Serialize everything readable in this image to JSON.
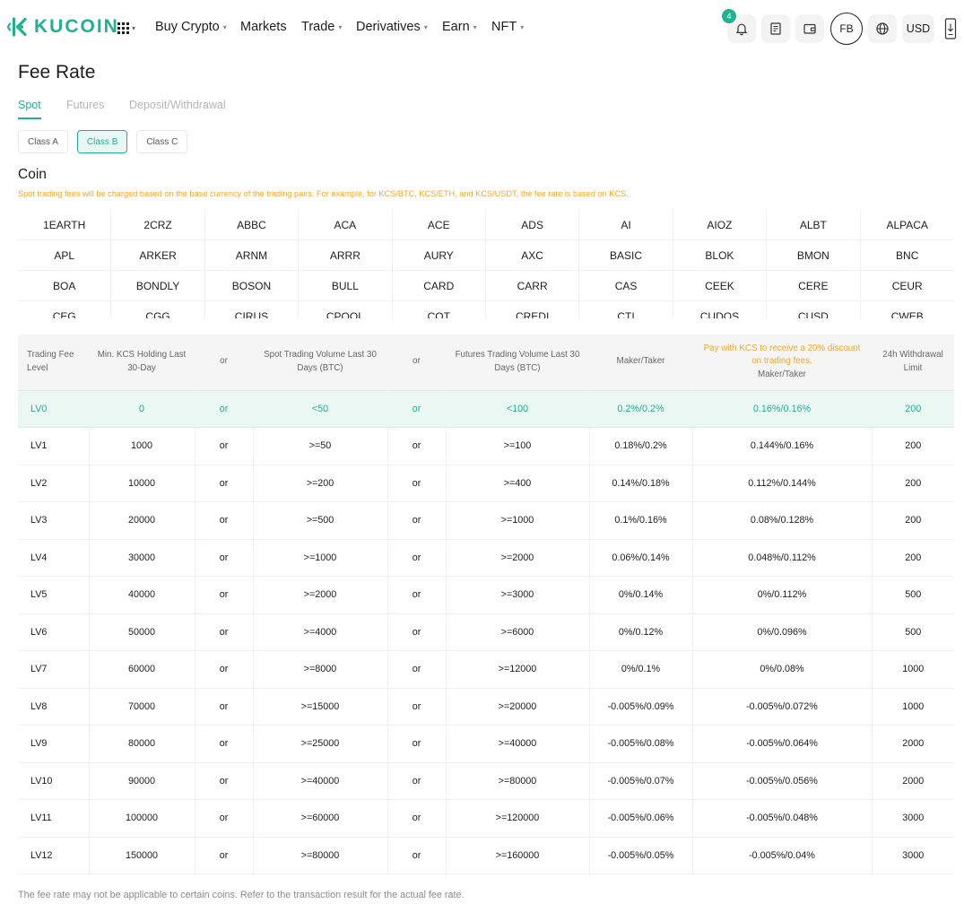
{
  "header": {
    "brand": "KUCOIN",
    "nav": [
      {
        "label": "Buy Crypto",
        "dropdown": true
      },
      {
        "label": "Markets",
        "dropdown": false
      },
      {
        "label": "Trade",
        "dropdown": true
      },
      {
        "label": "Derivatives",
        "dropdown": true
      },
      {
        "label": "Earn",
        "dropdown": true
      },
      {
        "label": "NFT",
        "dropdown": true
      }
    ],
    "notification_count": "4",
    "avatar_initials": "FB",
    "currency": "USD",
    "accent_color": "#23af91"
  },
  "page": {
    "title": "Fee Rate",
    "tabs": [
      "Spot",
      "Futures",
      "Deposit/Withdrawal"
    ],
    "active_tab": "Spot",
    "classes": [
      "Class A",
      "Class B",
      "Class C"
    ],
    "active_class": "Class B",
    "coin_title": "Coin",
    "coin_note": "Spot trading fees will be charged based on the base currency of the trading pairs. For example, for KCS/BTC, KCS/ETH, and KCS/USDT, the fee rate is based on KCS.",
    "coins": [
      [
        "1EARTH",
        "2CRZ",
        "ABBC",
        "ACA",
        "ACE",
        "ADS",
        "AI",
        "AIOZ",
        "ALBT",
        "ALPACA"
      ],
      [
        "APL",
        "ARKER",
        "ARNM",
        "ARRR",
        "AURY",
        "AXC",
        "BASIC",
        "BLOK",
        "BMON",
        "BNC"
      ],
      [
        "BOA",
        "BONDLY",
        "BOSON",
        "BULL",
        "CARD",
        "CARR",
        "CAS",
        "CEEK",
        "CERE",
        "CEUR"
      ],
      [
        "CEG",
        "CGG",
        "CIRUS",
        "CPOOL",
        "COT",
        "CREDI",
        "CTI",
        "CUDOS",
        "CUSD",
        "CWEB"
      ]
    ],
    "footer_note": "The fee rate may not be applicable to certain coins. Refer to the transaction result for the actual fee rate."
  },
  "fee_table": {
    "headers": {
      "level": "Trading Fee Level",
      "holding": "Min. KCS Holding Last 30-Day",
      "or1": "or",
      "spot_volume": "Spot Trading Volume Last 30 Days (BTC)",
      "or2": "or",
      "futures_volume": "Futures Trading Volume Last 30 Days (BTC)",
      "maker_taker": "Maker/Taker",
      "discount_note": "Pay with KCS to receive a 20% discount on trading fees.",
      "discount_maker_taker": "Maker/Taker",
      "withdrawal_limit": "24h Withdrawal Limit"
    },
    "rows": [
      {
        "level": "LV0",
        "holding": "0",
        "or1": "or",
        "spot": "<50",
        "or2": "or",
        "futures": "<100",
        "maker_taker": "0.2%/0.2%",
        "discount": "0.16%/0.16%",
        "limit": "200"
      },
      {
        "level": "LV1",
        "holding": "1000",
        "or1": "or",
        "spot": ">=50",
        "or2": "or",
        "futures": ">=100",
        "maker_taker": "0.18%/0.2%",
        "discount": "0.144%/0.16%",
        "limit": "200"
      },
      {
        "level": "LV2",
        "holding": "10000",
        "or1": "or",
        "spot": ">=200",
        "or2": "or",
        "futures": ">=400",
        "maker_taker": "0.14%/0.18%",
        "discount": "0.112%/0.144%",
        "limit": "200"
      },
      {
        "level": "LV3",
        "holding": "20000",
        "or1": "or",
        "spot": ">=500",
        "or2": "or",
        "futures": ">=1000",
        "maker_taker": "0.1%/0.16%",
        "discount": "0.08%/0.128%",
        "limit": "200"
      },
      {
        "level": "LV4",
        "holding": "30000",
        "or1": "or",
        "spot": ">=1000",
        "or2": "or",
        "futures": ">=2000",
        "maker_taker": "0.06%/0.14%",
        "discount": "0.048%/0.112%",
        "limit": "200"
      },
      {
        "level": "LV5",
        "holding": "40000",
        "or1": "or",
        "spot": ">=2000",
        "or2": "or",
        "futures": ">=3000",
        "maker_taker": "0%/0.14%",
        "discount": "0%/0.112%",
        "limit": "500"
      },
      {
        "level": "LV6",
        "holding": "50000",
        "or1": "or",
        "spot": ">=4000",
        "or2": "or",
        "futures": ">=6000",
        "maker_taker": "0%/0.12%",
        "discount": "0%/0.096%",
        "limit": "500"
      },
      {
        "level": "LV7",
        "holding": "60000",
        "or1": "or",
        "spot": ">=8000",
        "or2": "or",
        "futures": ">=12000",
        "maker_taker": "0%/0.1%",
        "discount": "0%/0.08%",
        "limit": "1000"
      },
      {
        "level": "LV8",
        "holding": "70000",
        "or1": "or",
        "spot": ">=15000",
        "or2": "or",
        "futures": ">=20000",
        "maker_taker": "-0.005%/0.09%",
        "discount": "-0.005%/0.072%",
        "limit": "1000"
      },
      {
        "level": "LV9",
        "holding": "80000",
        "or1": "or",
        "spot": ">=25000",
        "or2": "or",
        "futures": ">=40000",
        "maker_taker": "-0.005%/0.08%",
        "discount": "-0.005%/0.064%",
        "limit": "2000"
      },
      {
        "level": "LV10",
        "holding": "90000",
        "or1": "or",
        "spot": ">=40000",
        "or2": "or",
        "futures": ">=80000",
        "maker_taker": "-0.005%/0.07%",
        "discount": "-0.005%/0.056%",
        "limit": "2000"
      },
      {
        "level": "LV11",
        "holding": "100000",
        "or1": "or",
        "spot": ">=60000",
        "or2": "or",
        "futures": ">=120000",
        "maker_taker": "-0.005%/0.06%",
        "discount": "-0.005%/0.048%",
        "limit": "3000"
      },
      {
        "level": "LV12",
        "holding": "150000",
        "or1": "or",
        "spot": ">=80000",
        "or2": "or",
        "futures": ">=160000",
        "maker_taker": "-0.005%/0.05%",
        "discount": "-0.005%/0.04%",
        "limit": "3000"
      }
    ],
    "highlight_row": "LV0"
  }
}
